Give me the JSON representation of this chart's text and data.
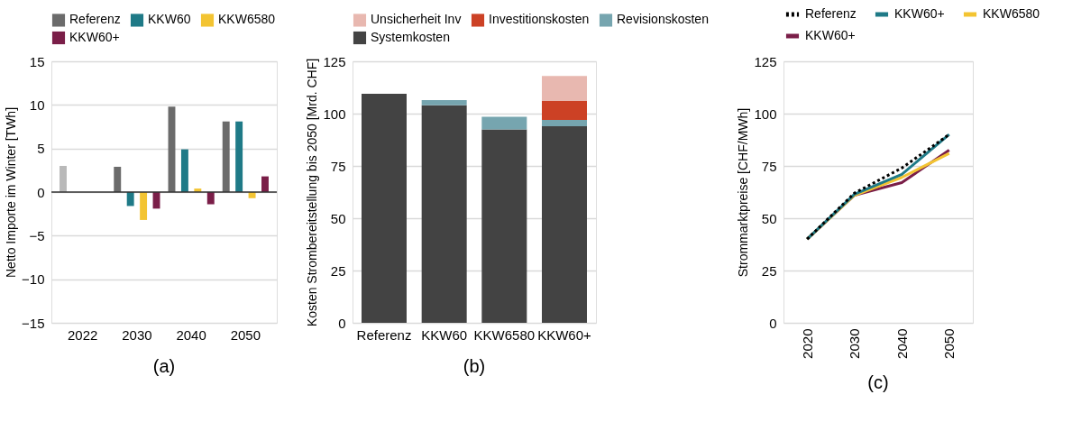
{
  "chart_data": [
    {
      "type": "bar",
      "legend": "top",
      "grid": "y",
      "ylabel": "Netto Importe im Winter [TWh]",
      "categories": [
        "2022",
        "2030",
        "2040",
        "2050"
      ],
      "ylim": [
        -15,
        15
      ],
      "yticks": [
        -15,
        -10,
        -5,
        0,
        5,
        10,
        15
      ],
      "ref_lines": [
        {
          "axis": "y",
          "value": 0
        }
      ],
      "annotations": [
        "(a)"
      ],
      "series": [
        {
          "name": "Referenz",
          "color": "#6b6b6b",
          "colors": [
            "#b9b9b9",
            "#6b6b6b",
            "#6b6b6b",
            "#6b6b6b"
          ],
          "values": [
            3.0,
            2.9,
            9.8,
            8.1
          ]
        },
        {
          "name": "KKW60",
          "color": "#1f7a87",
          "values": [
            null,
            -1.6,
            4.9,
            8.1
          ]
        },
        {
          "name": "KKW6580",
          "color": "#f3c432",
          "values": [
            null,
            -3.2,
            0.4,
            -0.7
          ]
        },
        {
          "name": "KKW60+",
          "color": "#7a1e48",
          "values": [
            null,
            -1.9,
            -1.4,
            1.8
          ]
        }
      ]
    },
    {
      "type": "bar",
      "stacked": true,
      "legend": "top",
      "grid": "y",
      "ylabel": "Kosten Strombereitstellung bis 2050 [Mrd. CHF]",
      "categories": [
        "Referenz",
        "KKW60",
        "KKW6580",
        "KKW60+"
      ],
      "ylim": [
        0,
        125
      ],
      "yticks": [
        0,
        25,
        50,
        75,
        100,
        125
      ],
      "annotations": [
        "(b)"
      ],
      "series": [
        {
          "name": "Systemkosten",
          "color": "#434343",
          "values": [
            109.5,
            104,
            92.5,
            94
          ]
        },
        {
          "name": "Revisionskosten",
          "color": "#76a5af",
          "values": [
            0,
            2.5,
            6,
            3
          ]
        },
        {
          "name": "Investitionskosten",
          "color": "#cc4125",
          "values": [
            0,
            0,
            0,
            9
          ]
        },
        {
          "name": "Unsicherheit Inv",
          "color": "#e8b8b0",
          "values": [
            0,
            0,
            0,
            12
          ]
        }
      ]
    },
    {
      "type": "line",
      "legend": "top",
      "grid": "y",
      "ylabel": "Strommarktpreise [CHF/MWh]",
      "categories": [
        "2020",
        "2030",
        "2040",
        "2050"
      ],
      "ylim": [
        0,
        125
      ],
      "yticks": [
        0,
        25,
        50,
        75,
        100,
        125
      ],
      "annotations": [
        "(c)"
      ],
      "series": [
        {
          "name": "Referenz",
          "color": "#000000",
          "line_style": "dotted",
          "values": [
            40,
            62,
            74,
            90
          ]
        },
        {
          "name": "KKW60+",
          "color": "#1f7a87",
          "values": [
            40,
            61.5,
            71,
            90
          ]
        },
        {
          "name": "KKW6580",
          "color": "#f3c432",
          "values": [
            40,
            61,
            69.5,
            81
          ]
        },
        {
          "name": "KKW60+",
          "color": "#7a1e48",
          "values": [
            40,
            61,
            67,
            82.5
          ]
        }
      ]
    }
  ]
}
